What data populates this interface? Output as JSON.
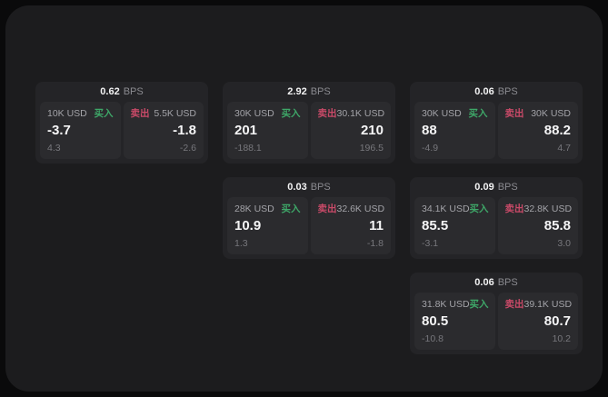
{
  "labels": {
    "buy": "买入",
    "sell": "卖出",
    "bps_unit": "BPS"
  },
  "colors": {
    "background": "#1c1c1e",
    "card": "#242427",
    "panel": "#2b2b2e",
    "buy": "#3ea768",
    "sell": "#c94a68"
  },
  "cards": [
    {
      "bps": "0.62",
      "buy": {
        "amount": "10K USD",
        "value": "-3.7",
        "change": "4.3"
      },
      "sell": {
        "amount": "5.5K USD",
        "value": "-1.8",
        "change": "-2.6"
      }
    },
    {
      "bps": "2.92",
      "buy": {
        "amount": "30K USD",
        "value": "201",
        "change": "-188.1"
      },
      "sell": {
        "amount": "30.1K USD",
        "value": "210",
        "change": "196.5"
      }
    },
    {
      "bps": "0.06",
      "buy": {
        "amount": "30K USD",
        "value": "88",
        "change": "-4.9"
      },
      "sell": {
        "amount": "30K USD",
        "value": "88.2",
        "change": "4.7"
      }
    },
    {
      "bps": "0.03",
      "buy": {
        "amount": "28K USD",
        "value": "10.9",
        "change": "1.3"
      },
      "sell": {
        "amount": "32.6K USD",
        "value": "11",
        "change": "-1.8"
      }
    },
    {
      "bps": "0.09",
      "buy": {
        "amount": "34.1K USD",
        "value": "85.5",
        "change": "-3.1"
      },
      "sell": {
        "amount": "32.8K USD",
        "value": "85.8",
        "change": "3.0"
      }
    },
    {
      "bps": "0.06",
      "buy": {
        "amount": "31.8K USD",
        "value": "80.5",
        "change": "-10.8"
      },
      "sell": {
        "amount": "39.1K USD",
        "value": "80.7",
        "change": "10.2"
      }
    }
  ]
}
